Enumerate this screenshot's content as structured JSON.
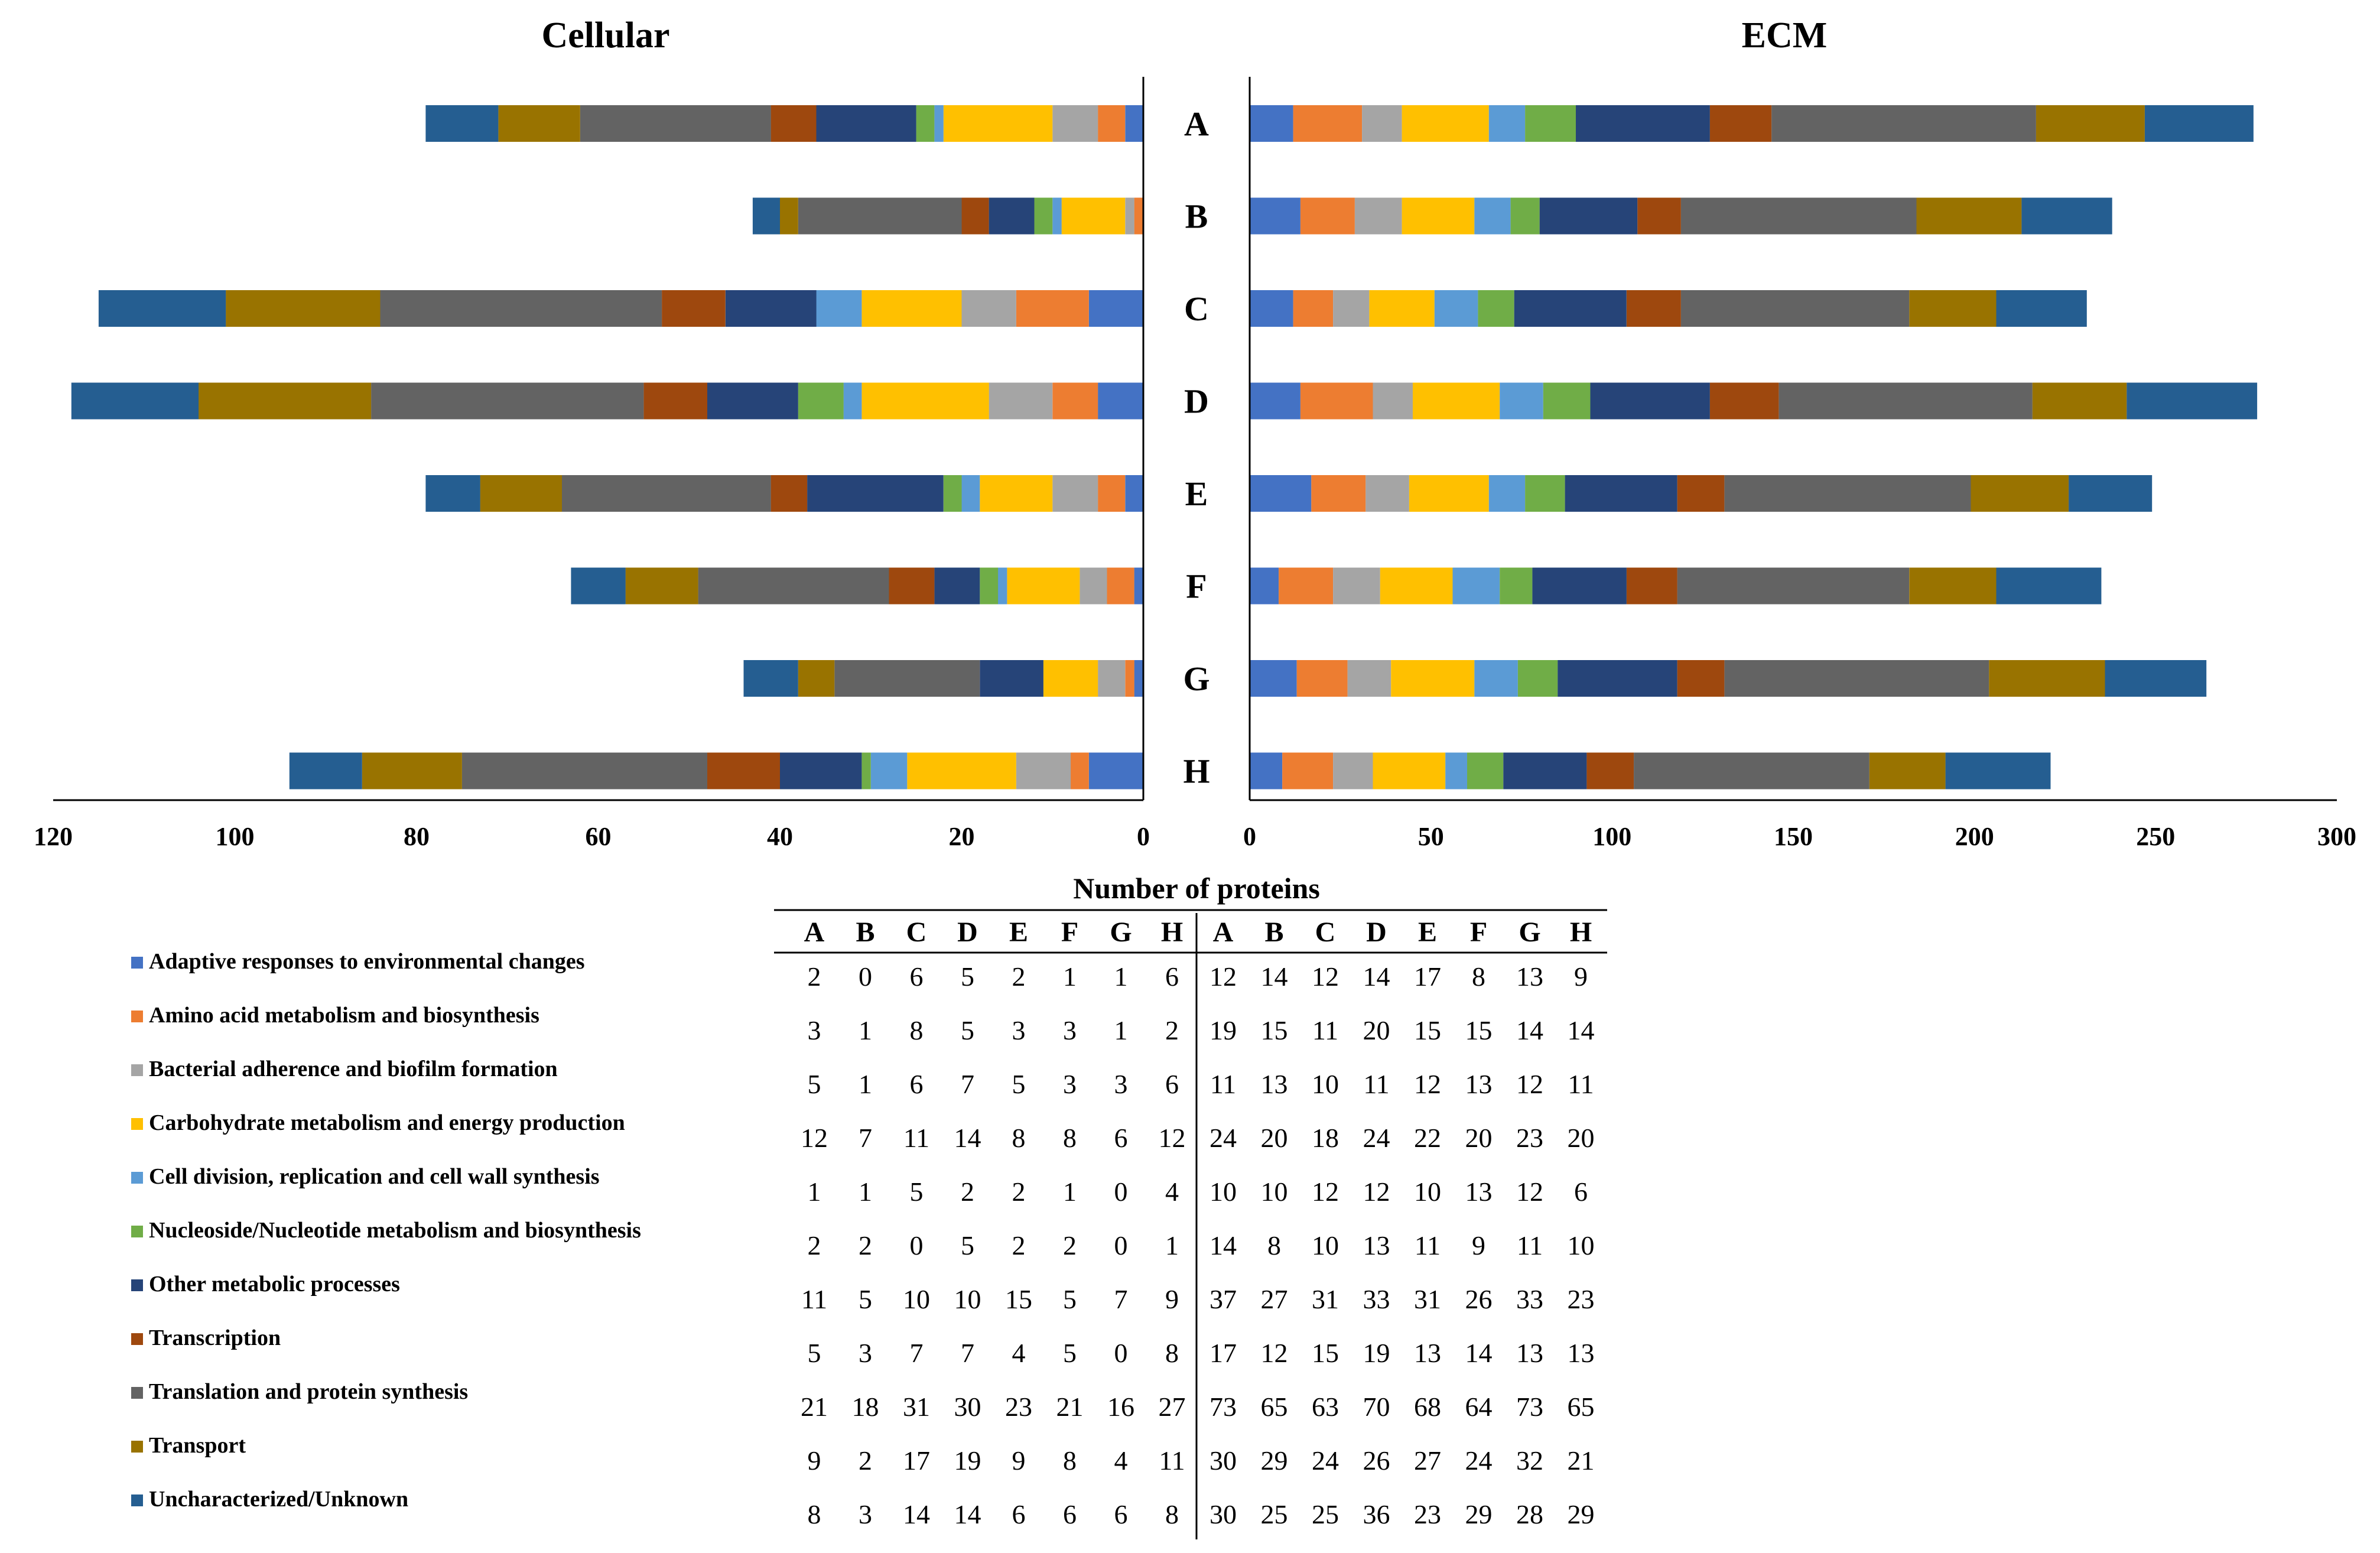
{
  "chart_data": {
    "type": "bar",
    "orientation": "horizontal-stacked",
    "xlabel": "Number of proteins",
    "categories": [
      "A",
      "B",
      "C",
      "D",
      "E",
      "F",
      "G",
      "H"
    ],
    "panels": [
      {
        "title": "Cellular",
        "xlim": [
          0,
          120
        ],
        "direction": "reversed",
        "ticks": [
          "120",
          "100",
          "80",
          "60",
          "40",
          "20",
          "0"
        ]
      },
      {
        "title": "ECM",
        "xlim": [
          0,
          300
        ],
        "direction": "normal",
        "ticks": [
          "0",
          "50",
          "100",
          "150",
          "200",
          "250",
          "300"
        ]
      }
    ],
    "series": [
      {
        "name": "Adaptive responses to environmental changes",
        "color": "#4472C4",
        "cellular": [
          2,
          0,
          6,
          5,
          2,
          1,
          1,
          6
        ],
        "ecm": [
          12,
          14,
          12,
          14,
          17,
          8,
          13,
          9
        ]
      },
      {
        "name": "Amino acid metabolism and biosynthesis",
        "color": "#ED7D31",
        "cellular": [
          3,
          1,
          8,
          5,
          3,
          3,
          1,
          2
        ],
        "ecm": [
          19,
          15,
          11,
          20,
          15,
          15,
          14,
          14
        ]
      },
      {
        "name": "Bacterial adherence and biofilm formation",
        "color": "#A5A5A5",
        "cellular": [
          5,
          1,
          6,
          7,
          5,
          3,
          3,
          6
        ],
        "ecm": [
          11,
          13,
          10,
          11,
          12,
          13,
          12,
          11
        ]
      },
      {
        "name": "Carbohydrate metabolism and energy production",
        "color": "#FFC000",
        "cellular": [
          12,
          7,
          11,
          14,
          8,
          8,
          6,
          12
        ],
        "ecm": [
          24,
          20,
          18,
          24,
          22,
          20,
          23,
          20
        ]
      },
      {
        "name": "Cell division, replication and cell wall synthesis",
        "color": "#5B9BD5",
        "cellular": [
          1,
          1,
          5,
          2,
          2,
          1,
          0,
          4
        ],
        "ecm": [
          10,
          10,
          12,
          12,
          10,
          13,
          12,
          6
        ]
      },
      {
        "name": "Nucleoside/Nucleotide metabolism and biosynthesis",
        "color": "#70AD47",
        "cellular": [
          2,
          2,
          0,
          5,
          2,
          2,
          0,
          1
        ],
        "ecm": [
          14,
          8,
          10,
          13,
          11,
          9,
          11,
          10
        ]
      },
      {
        "name": "Other metabolic processes",
        "color": "#264478",
        "cellular": [
          11,
          5,
          10,
          10,
          15,
          5,
          7,
          9
        ],
        "ecm": [
          37,
          27,
          31,
          33,
          31,
          26,
          33,
          23
        ]
      },
      {
        "name": "Transcription",
        "color": "#9E480E",
        "cellular": [
          5,
          3,
          7,
          7,
          4,
          5,
          0,
          8
        ],
        "ecm": [
          17,
          12,
          15,
          19,
          13,
          14,
          13,
          13
        ]
      },
      {
        "name": "Translation and protein synthesis",
        "color": "#636363",
        "cellular": [
          21,
          18,
          31,
          30,
          23,
          21,
          16,
          27
        ],
        "ecm": [
          73,
          65,
          63,
          70,
          68,
          64,
          73,
          65
        ]
      },
      {
        "name": "Transport",
        "color": "#997300",
        "cellular": [
          9,
          2,
          17,
          19,
          9,
          8,
          4,
          11
        ],
        "ecm": [
          30,
          29,
          24,
          26,
          27,
          24,
          32,
          21
        ]
      },
      {
        "name": "Uncharacterized/Unknown",
        "color": "#255E91",
        "cellular": [
          8,
          3,
          14,
          14,
          6,
          6,
          6,
          8
        ],
        "ecm": [
          30,
          25,
          25,
          36,
          23,
          29,
          28,
          29
        ]
      }
    ]
  }
}
